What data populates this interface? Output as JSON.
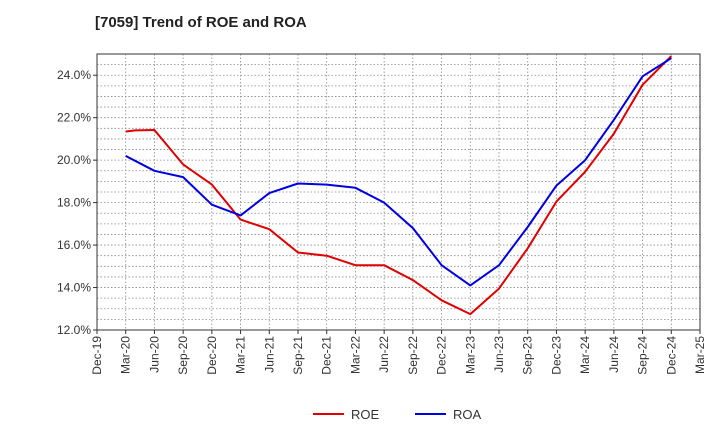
{
  "chart_data": {
    "type": "line",
    "title": "[7059]  Trend of ROE and ROA",
    "xlabel": "",
    "ylabel": "",
    "x_ticks": [
      "Dec-19",
      "Mar-20",
      "Jun-20",
      "Sep-20",
      "Dec-20",
      "Mar-21",
      "Jun-21",
      "Sep-21",
      "Dec-21",
      "Mar-22",
      "Jun-22",
      "Sep-22",
      "Dec-22",
      "Mar-23",
      "Jun-23",
      "Sep-23",
      "Dec-23",
      "Mar-24",
      "Jun-24",
      "Sep-24",
      "Dec-24",
      "Mar-25"
    ],
    "ylim": [
      12.0,
      25.0
    ],
    "y_ticks": [
      12.0,
      14.0,
      16.0,
      18.0,
      20.0,
      22.0,
      24.0
    ],
    "y_tick_format": "percent_1dp",
    "grid": true,
    "legend_position": "bottom",
    "series": [
      {
        "name": "ROE",
        "color": "#e00000",
        "x": [
          "Mar-20",
          "Apr-20",
          "Jun-20",
          "Sep-20",
          "Dec-20",
          "Mar-21",
          "Jun-21",
          "Sep-21",
          "Dec-21",
          "Mar-22",
          "Jun-22",
          "Sep-22",
          "Dec-22",
          "Mar-23",
          "Jun-23",
          "Sep-23",
          "Dec-23",
          "Mar-24",
          "Jun-24",
          "Sep-24",
          "Dec-24"
        ],
        "values": [
          21.35,
          21.4,
          21.42,
          19.8,
          18.85,
          17.2,
          16.75,
          15.65,
          15.5,
          15.05,
          15.05,
          14.35,
          13.4,
          12.75,
          13.95,
          15.85,
          18.05,
          19.45,
          21.25,
          23.55,
          24.9
        ]
      },
      {
        "name": "ROA",
        "color": "#0000e0",
        "x": [
          "Mar-20",
          "Jun-20",
          "Sep-20",
          "Dec-20",
          "Mar-21",
          "Jun-21",
          "Sep-21",
          "Dec-21",
          "Mar-22",
          "Jun-22",
          "Sep-22",
          "Dec-22",
          "Mar-23",
          "Jun-23",
          "Sep-23",
          "Dec-23",
          "Mar-24",
          "Jun-24",
          "Sep-24",
          "Dec-24"
        ],
        "values": [
          20.2,
          19.5,
          19.2,
          17.9,
          17.4,
          18.45,
          18.9,
          18.85,
          18.7,
          18.0,
          16.8,
          15.05,
          14.1,
          15.05,
          16.85,
          18.8,
          20.0,
          21.9,
          23.95,
          24.8
        ]
      }
    ]
  }
}
